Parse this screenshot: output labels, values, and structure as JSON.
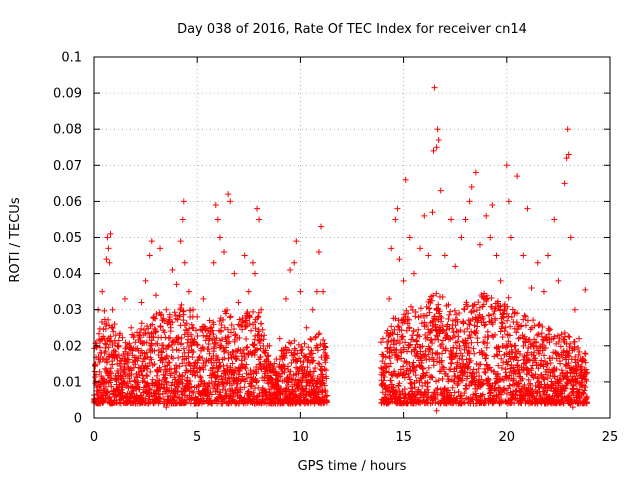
{
  "chart_data": {
    "type": "scatter",
    "title": "Day 038 of 2016, Rate Of TEC Index for receiver cn14",
    "xlabel": "GPS time / hours",
    "ylabel": "ROTI / TECUs",
    "xlim": [
      0,
      25
    ],
    "ylim": [
      0,
      0.1
    ],
    "xticks": [
      0,
      5,
      10,
      15,
      20,
      25
    ],
    "yticks": [
      0,
      0.01,
      0.02,
      0.03,
      0.04,
      0.05,
      0.06,
      0.07,
      0.08,
      0.09,
      0.1
    ],
    "xtick_labels": [
      "0",
      "5",
      "10",
      "15",
      "20",
      "25"
    ],
    "ytick_labels": [
      "0",
      "0.01",
      "0.02",
      "0.03",
      "0.04",
      "0.05",
      "0.06",
      "0.07",
      "0.08",
      "0.09",
      "0.1"
    ],
    "grid": true,
    "marker": "+",
    "color": "#ff0000",
    "data_gap_hours": [
      11.3,
      13.9
    ],
    "series": [
      {
        "name": "ROTI",
        "points": [
          [
            0.1,
            0.012
          ],
          [
            0.2,
            0.03
          ],
          [
            0.3,
            0.018
          ],
          [
            0.4,
            0.035
          ],
          [
            0.5,
            0.022
          ],
          [
            0.6,
            0.044
          ],
          [
            0.65,
            0.05
          ],
          [
            0.7,
            0.047
          ],
          [
            0.75,
            0.043
          ],
          [
            0.8,
            0.051
          ],
          [
            0.9,
            0.03
          ],
          [
            1.0,
            0.026
          ],
          [
            1.2,
            0.02
          ],
          [
            1.5,
            0.033
          ],
          [
            1.8,
            0.025
          ],
          [
            2.0,
            0.021
          ],
          [
            2.3,
            0.032
          ],
          [
            2.5,
            0.038
          ],
          [
            2.7,
            0.045
          ],
          [
            2.8,
            0.049
          ],
          [
            3.0,
            0.034
          ],
          [
            3.2,
            0.047
          ],
          [
            3.5,
            0.03
          ],
          [
            3.8,
            0.041
          ],
          [
            4.0,
            0.037
          ],
          [
            4.2,
            0.049
          ],
          [
            4.3,
            0.055
          ],
          [
            4.35,
            0.06
          ],
          [
            4.4,
            0.043
          ],
          [
            4.6,
            0.035
          ],
          [
            4.8,
            0.03
          ],
          [
            5.0,
            0.028
          ],
          [
            5.3,
            0.033
          ],
          [
            5.6,
            0.027
          ],
          [
            5.8,
            0.043
          ],
          [
            5.9,
            0.059
          ],
          [
            6.0,
            0.055
          ],
          [
            6.1,
            0.05
          ],
          [
            6.3,
            0.046
          ],
          [
            6.5,
            0.062
          ],
          [
            6.6,
            0.06
          ],
          [
            6.8,
            0.04
          ],
          [
            7.0,
            0.032
          ],
          [
            7.3,
            0.045
          ],
          [
            7.5,
            0.035
          ],
          [
            7.7,
            0.043
          ],
          [
            7.8,
            0.04
          ],
          [
            7.9,
            0.058
          ],
          [
            8.0,
            0.055
          ],
          [
            8.1,
            0.03
          ],
          [
            8.3,
            0.018
          ],
          [
            8.5,
            0.02
          ],
          [
            9.0,
            0.022
          ],
          [
            9.3,
            0.033
          ],
          [
            9.5,
            0.041
          ],
          [
            9.7,
            0.043
          ],
          [
            9.8,
            0.049
          ],
          [
            10.0,
            0.035
          ],
          [
            10.3,
            0.025
          ],
          [
            10.6,
            0.03
          ],
          [
            10.8,
            0.035
          ],
          [
            10.9,
            0.046
          ],
          [
            11.0,
            0.053
          ],
          [
            11.1,
            0.035
          ],
          [
            11.2,
            0.018
          ],
          [
            14.0,
            0.022
          ],
          [
            14.3,
            0.033
          ],
          [
            14.4,
            0.047
          ],
          [
            14.6,
            0.055
          ],
          [
            14.7,
            0.058
          ],
          [
            14.8,
            0.044
          ],
          [
            15.0,
            0.038
          ],
          [
            15.1,
            0.066
          ],
          [
            15.3,
            0.05
          ],
          [
            15.5,
            0.04
          ],
          [
            15.8,
            0.047
          ],
          [
            16.0,
            0.056
          ],
          [
            16.2,
            0.045
          ],
          [
            16.4,
            0.057
          ],
          [
            16.45,
            0.074
          ],
          [
            16.5,
            0.0915
          ],
          [
            16.6,
            0.075
          ],
          [
            16.65,
            0.08
          ],
          [
            16.7,
            0.077
          ],
          [
            16.8,
            0.063
          ],
          [
            17.0,
            0.045
          ],
          [
            17.3,
            0.055
          ],
          [
            17.5,
            0.042
          ],
          [
            17.8,
            0.05
          ],
          [
            18.0,
            0.055
          ],
          [
            18.2,
            0.06
          ],
          [
            18.3,
            0.064
          ],
          [
            18.5,
            0.068
          ],
          [
            18.7,
            0.048
          ],
          [
            19.0,
            0.056
          ],
          [
            19.2,
            0.05
          ],
          [
            19.3,
            0.059
          ],
          [
            19.5,
            0.045
          ],
          [
            19.7,
            0.038
          ],
          [
            20.0,
            0.07
          ],
          [
            20.1,
            0.06
          ],
          [
            20.2,
            0.05
          ],
          [
            20.5,
            0.067
          ],
          [
            20.8,
            0.045
          ],
          [
            21.0,
            0.058
          ],
          [
            21.2,
            0.036
          ],
          [
            21.5,
            0.043
          ],
          [
            21.8,
            0.035
          ],
          [
            22.0,
            0.045
          ],
          [
            22.3,
            0.055
          ],
          [
            22.5,
            0.038
          ],
          [
            22.8,
            0.065
          ],
          [
            22.9,
            0.072
          ],
          [
            22.95,
            0.08
          ],
          [
            23.0,
            0.073
          ],
          [
            23.1,
            0.05
          ],
          [
            23.3,
            0.03
          ],
          [
            23.5,
            0.022
          ],
          [
            23.8,
            0.0355
          ],
          [
            0.2,
            0.004
          ],
          [
            0.8,
            0.005
          ],
          [
            1.5,
            0.006
          ],
          [
            2.0,
            0.004
          ],
          [
            3.0,
            0.005
          ],
          [
            3.5,
            0.003
          ],
          [
            4.5,
            0.005
          ],
          [
            5.5,
            0.006
          ],
          [
            6.5,
            0.004
          ],
          [
            7.5,
            0.005
          ],
          [
            8.5,
            0.005
          ],
          [
            9.5,
            0.004
          ],
          [
            10.5,
            0.005
          ],
          [
            11.0,
            0.004
          ],
          [
            14.0,
            0.005
          ],
          [
            14.5,
            0.006
          ],
          [
            15.5,
            0.004
          ],
          [
            16.6,
            0.002
          ],
          [
            17.5,
            0.005
          ],
          [
            18.5,
            0.004
          ],
          [
            19.5,
            0.006
          ],
          [
            20.5,
            0.005
          ],
          [
            21.5,
            0.004
          ],
          [
            22.5,
            0.006
          ],
          [
            23.2,
            0.003
          ],
          [
            23.8,
            0.005
          ]
        ]
      }
    ],
    "activity_envelope": [
      [
        0.0,
        0.02
      ],
      [
        0.5,
        0.03
      ],
      [
        1.0,
        0.025
      ],
      [
        1.5,
        0.022
      ],
      [
        2.0,
        0.024
      ],
      [
        2.5,
        0.028
      ],
      [
        3.0,
        0.03
      ],
      [
        3.5,
        0.028
      ],
      [
        4.0,
        0.03
      ],
      [
        4.5,
        0.033
      ],
      [
        5.0,
        0.025
      ],
      [
        5.5,
        0.026
      ],
      [
        6.0,
        0.03
      ],
      [
        6.5,
        0.03
      ],
      [
        7.0,
        0.027
      ],
      [
        7.5,
        0.03
      ],
      [
        8.0,
        0.03
      ],
      [
        8.5,
        0.018
      ],
      [
        9.0,
        0.018
      ],
      [
        9.5,
        0.023
      ],
      [
        10.0,
        0.02
      ],
      [
        10.5,
        0.022
      ],
      [
        11.0,
        0.025
      ],
      [
        11.3,
        0.018
      ],
      [
        14.0,
        0.022
      ],
      [
        14.5,
        0.028
      ],
      [
        15.0,
        0.03
      ],
      [
        15.5,
        0.032
      ],
      [
        16.0,
        0.03
      ],
      [
        16.5,
        0.036
      ],
      [
        17.0,
        0.033
      ],
      [
        17.5,
        0.03
      ],
      [
        18.0,
        0.032
      ],
      [
        18.5,
        0.033
      ],
      [
        19.0,
        0.035
      ],
      [
        19.5,
        0.032
      ],
      [
        20.0,
        0.035
      ],
      [
        20.5,
        0.03
      ],
      [
        21.0,
        0.028
      ],
      [
        21.5,
        0.027
      ],
      [
        22.0,
        0.025
      ],
      [
        22.5,
        0.023
      ],
      [
        23.0,
        0.024
      ],
      [
        23.5,
        0.02
      ],
      [
        23.9,
        0.018
      ]
    ]
  }
}
